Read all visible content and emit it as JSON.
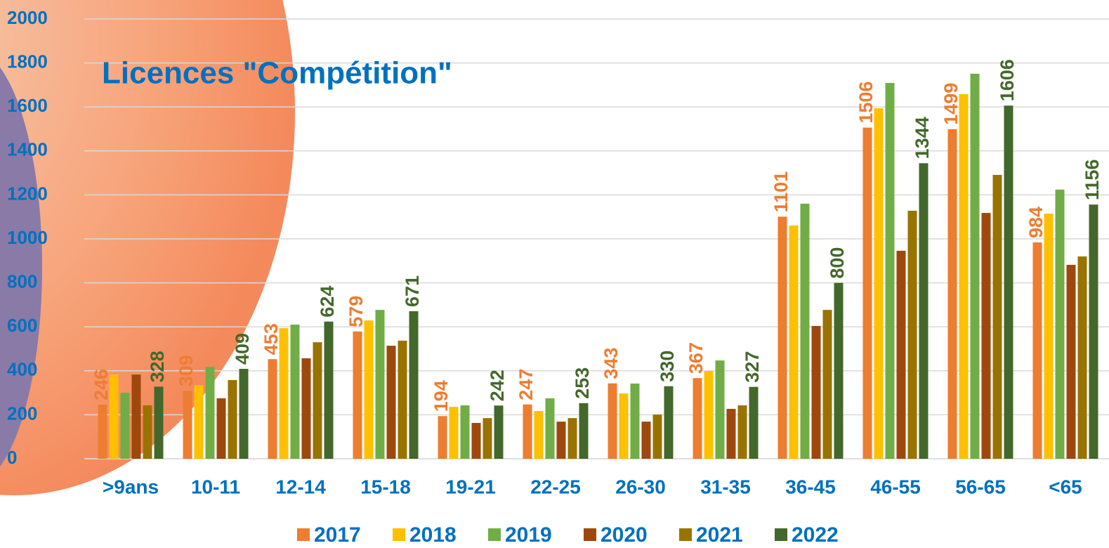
{
  "chart_data": {
    "type": "bar",
    "title": "Licences \"Compétition\"",
    "categories": [
      ">9ans",
      "10-11",
      "12-14",
      "15-18",
      "19-21",
      "22-25",
      "26-30",
      "31-35",
      "36-45",
      "46-55",
      "56-65",
      "<65"
    ],
    "series": [
      {
        "name": "2017",
        "color": "#ED7D31",
        "show_labels": true,
        "values": [
          246,
          309,
          453,
          579,
          194,
          247,
          343,
          367,
          1101,
          1506,
          1499,
          984
        ]
      },
      {
        "name": "2018",
        "color": "#FFC000",
        "show_labels": false,
        "values": [
          383,
          335,
          594,
          629,
          236,
          217,
          297,
          399,
          1061,
          1594,
          1658,
          1115
        ]
      },
      {
        "name": "2019",
        "color": "#70AD47",
        "show_labels": false,
        "values": [
          300,
          418,
          610,
          677,
          243,
          275,
          342,
          447,
          1160,
          1709,
          1751,
          1224
        ]
      },
      {
        "name": "2020",
        "color": "#9E480E",
        "show_labels": false,
        "values": [
          383,
          275,
          457,
          514,
          163,
          169,
          169,
          227,
          604,
          946,
          1118,
          882
        ]
      },
      {
        "name": "2021",
        "color": "#997300",
        "show_labels": false,
        "values": [
          243,
          358,
          530,
          537,
          185,
          185,
          201,
          243,
          677,
          1128,
          1291,
          920
        ]
      },
      {
        "name": "2022",
        "color": "#43682B",
        "show_labels": true,
        "values": [
          328,
          409,
          624,
          671,
          242,
          253,
          330,
          327,
          800,
          1344,
          1606,
          1156
        ]
      }
    ],
    "ylim": [
      0,
      2000
    ],
    "yticks": [
      0,
      200,
      400,
      600,
      800,
      1000,
      1200,
      1400,
      1600,
      1800,
      2000
    ],
    "grid": true,
    "legend": "bottom"
  }
}
